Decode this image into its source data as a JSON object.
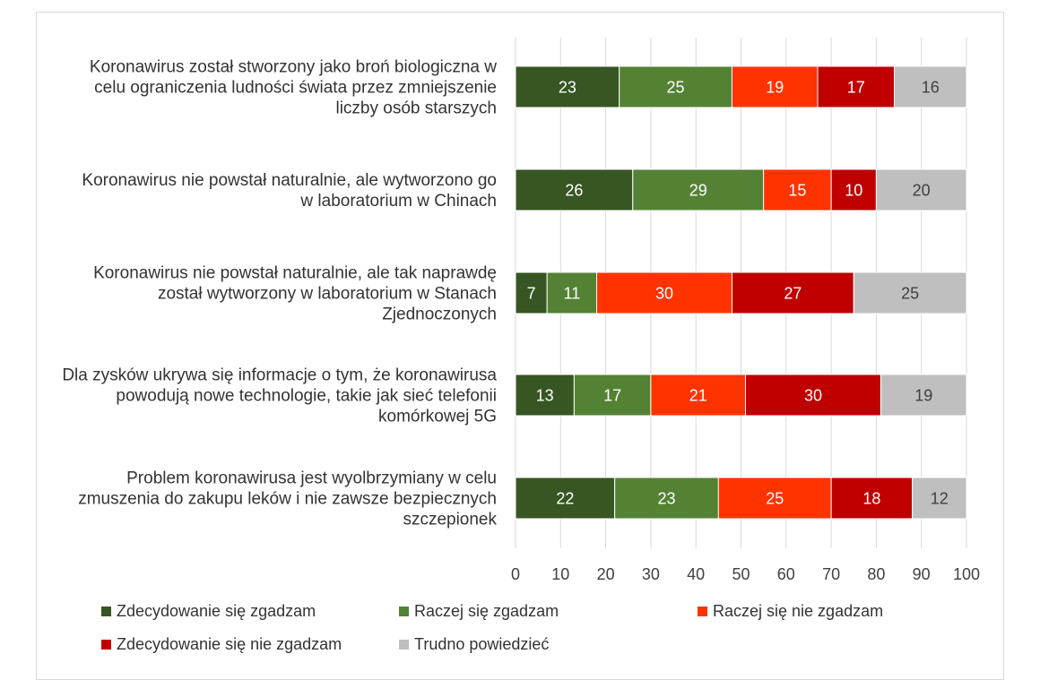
{
  "chart_data": {
    "type": "bar",
    "orientation": "horizontal",
    "stacked": true,
    "title": "",
    "xlabel": "",
    "ylabel": "",
    "xlim": [
      0,
      100
    ],
    "ticks": [
      0,
      10,
      20,
      30,
      40,
      50,
      60,
      70,
      80,
      90,
      100
    ],
    "grid": true,
    "legend_position": "bottom",
    "categories": [
      [
        "Koronawirus został stworzony jako broń biologiczna w",
        "celu ograniczenia ludności świata przez zmniejszenie",
        "liczby osób starszych"
      ],
      [
        "Koronawirus nie powstał naturalnie, ale wytworzono go",
        "w laboratorium w Chinach"
      ],
      [
        "Koronawirus nie powstał naturalnie, ale tak naprawdę",
        "został wytworzony w laboratorium w Stanach",
        "Zjednoczonych"
      ],
      [
        "Dla zysków ukrywa się informacje o tym, że koronawirusa",
        "powodują nowe technologie, takie jak sieć telefonii",
        "komórkowej 5G"
      ],
      [
        "Problem koronawirusa jest wyolbrzymiany w celu",
        "zmuszenia do zakupu leków i nie zawsze bezpiecznych",
        "szczepionek"
      ]
    ],
    "series": [
      {
        "name": "Zdecydowanie się zgadzam",
        "color": "#375623",
        "label_color": "#ffffff",
        "values": [
          23,
          26,
          7,
          13,
          22
        ]
      },
      {
        "name": "Raczej się zgadzam",
        "color": "#548235",
        "label_color": "#ffffff",
        "values": [
          25,
          29,
          11,
          17,
          23
        ]
      },
      {
        "name": "Raczej się nie zgadzam",
        "color": "#ff3300",
        "label_color": "#ffffff",
        "values": [
          19,
          15,
          30,
          21,
          25
        ]
      },
      {
        "name": "Zdecydowanie się nie zgadzam",
        "color": "#c00000",
        "label_color": "#ffffff",
        "values": [
          17,
          10,
          27,
          30,
          18
        ]
      },
      {
        "name": "Trudno powiedzieć",
        "color": "#bfbfbf",
        "label_color": "#404040",
        "values": [
          16,
          20,
          25,
          19,
          12
        ]
      }
    ]
  }
}
